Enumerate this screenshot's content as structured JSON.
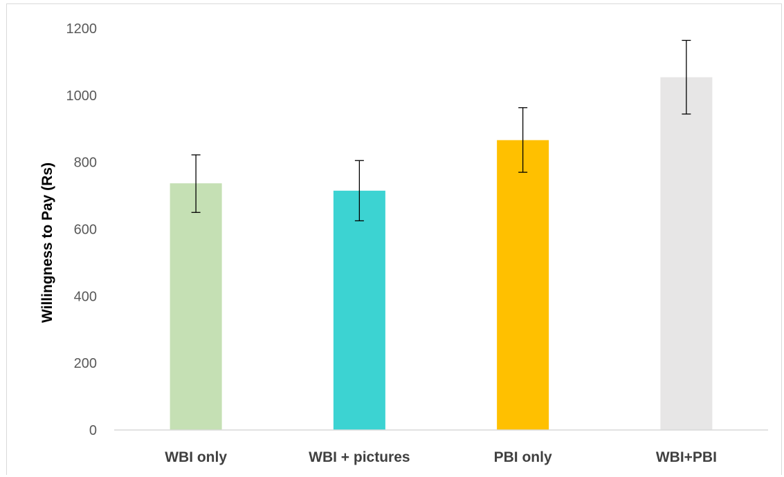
{
  "chart_data": {
    "type": "bar",
    "title": "",
    "xlabel": "",
    "ylabel": "Willingness to Pay (Rs)",
    "ylim": [
      0,
      1200
    ],
    "yticks": [
      0,
      200,
      400,
      600,
      800,
      1000,
      1200
    ],
    "grid": false,
    "legend": "none",
    "categories": [
      "WBI only",
      "WBI + pictures",
      "PBI only",
      "WBI+PBI"
    ],
    "values": [
      737,
      715,
      866,
      1054
    ],
    "error_low": [
      650,
      625,
      770,
      944
    ],
    "error_high": [
      822,
      805,
      963,
      1164
    ],
    "colors": [
      "#c5e0b4",
      "#3cd3d2",
      "#ffc000",
      "#e7e6e6"
    ],
    "axis_color": "#d9d9d9",
    "error_bar_color": "#000000"
  }
}
